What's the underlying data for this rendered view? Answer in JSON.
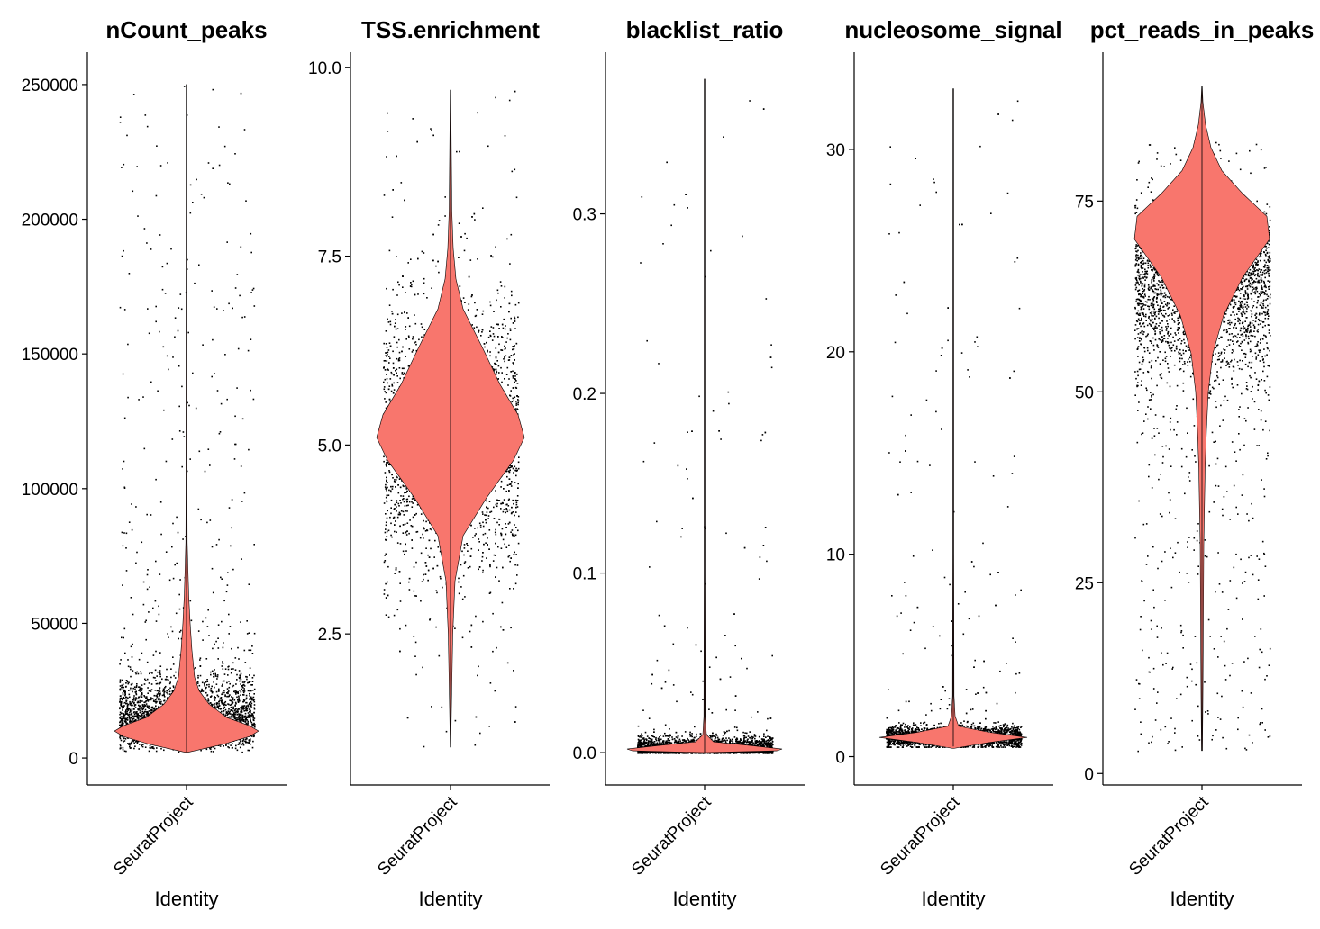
{
  "chart_data": [
    {
      "type": "violin",
      "title": "nCount_peaks",
      "xlabel": "Identity",
      "categories": [
        "SeuratProject"
      ],
      "yticks": [
        0,
        50000,
        100000,
        150000,
        200000,
        250000
      ],
      "ytick_labels": [
        "0",
        "50000",
        "100000",
        "150000",
        "200000",
        "250000"
      ],
      "ylim": [
        -10000,
        262000
      ],
      "summary": {
        "min": 2000,
        "max": 250000,
        "mode": 10000,
        "bulk_upper": 25000
      },
      "fill": "#F8766D",
      "points": "jittered single cells (black)"
    },
    {
      "type": "violin",
      "title": "TSS.enrichment",
      "xlabel": "Identity",
      "categories": [
        "SeuratProject"
      ],
      "yticks": [
        2.5,
        5.0,
        7.5,
        10.0
      ],
      "ytick_labels": [
        "2.5",
        "5.0",
        "7.5",
        "10.0"
      ],
      "ylim": [
        0.5,
        10.2
      ],
      "summary": {
        "min": 1.0,
        "max": 9.7,
        "mode": 5.1
      },
      "fill": "#F8766D",
      "points": "jittered single cells (black)"
    },
    {
      "type": "violin",
      "title": "blacklist_ratio",
      "xlabel": "Identity",
      "categories": [
        "SeuratProject"
      ],
      "yticks": [
        0.0,
        0.1,
        0.2,
        0.3
      ],
      "ytick_labels": [
        "0.0",
        "0.1",
        "0.2",
        "0.3"
      ],
      "ylim": [
        -0.018,
        0.39
      ],
      "summary": {
        "min": 0.0,
        "max": 0.375,
        "mode": 0.002
      },
      "fill": "#F8766D",
      "points": "jittered single cells (black)"
    },
    {
      "type": "violin",
      "title": "nucleosome_signal",
      "xlabel": "Identity",
      "categories": [
        "SeuratProject"
      ],
      "yticks": [
        0,
        10,
        20,
        30
      ],
      "ytick_labels": [
        "0",
        "10",
        "20",
        "30"
      ],
      "ylim": [
        -1.4,
        34.8
      ],
      "summary": {
        "min": 0.5,
        "max": 33,
        "mode": 1.0
      },
      "fill": "#F8766D",
      "points": "jittered single cells (black)"
    },
    {
      "type": "violin",
      "title": "pct_reads_in_peaks",
      "xlabel": "Identity",
      "categories": [
        "SeuratProject"
      ],
      "yticks": [
        0,
        25,
        50,
        75
      ],
      "ytick_labels": [
        "0",
        "25",
        "50",
        "75"
      ],
      "ylim": [
        -1.5,
        94.5
      ],
      "summary": {
        "min": 3,
        "max": 90,
        "mode": 70
      },
      "fill": "#F8766D",
      "points": "jittered single cells (black)"
    }
  ]
}
